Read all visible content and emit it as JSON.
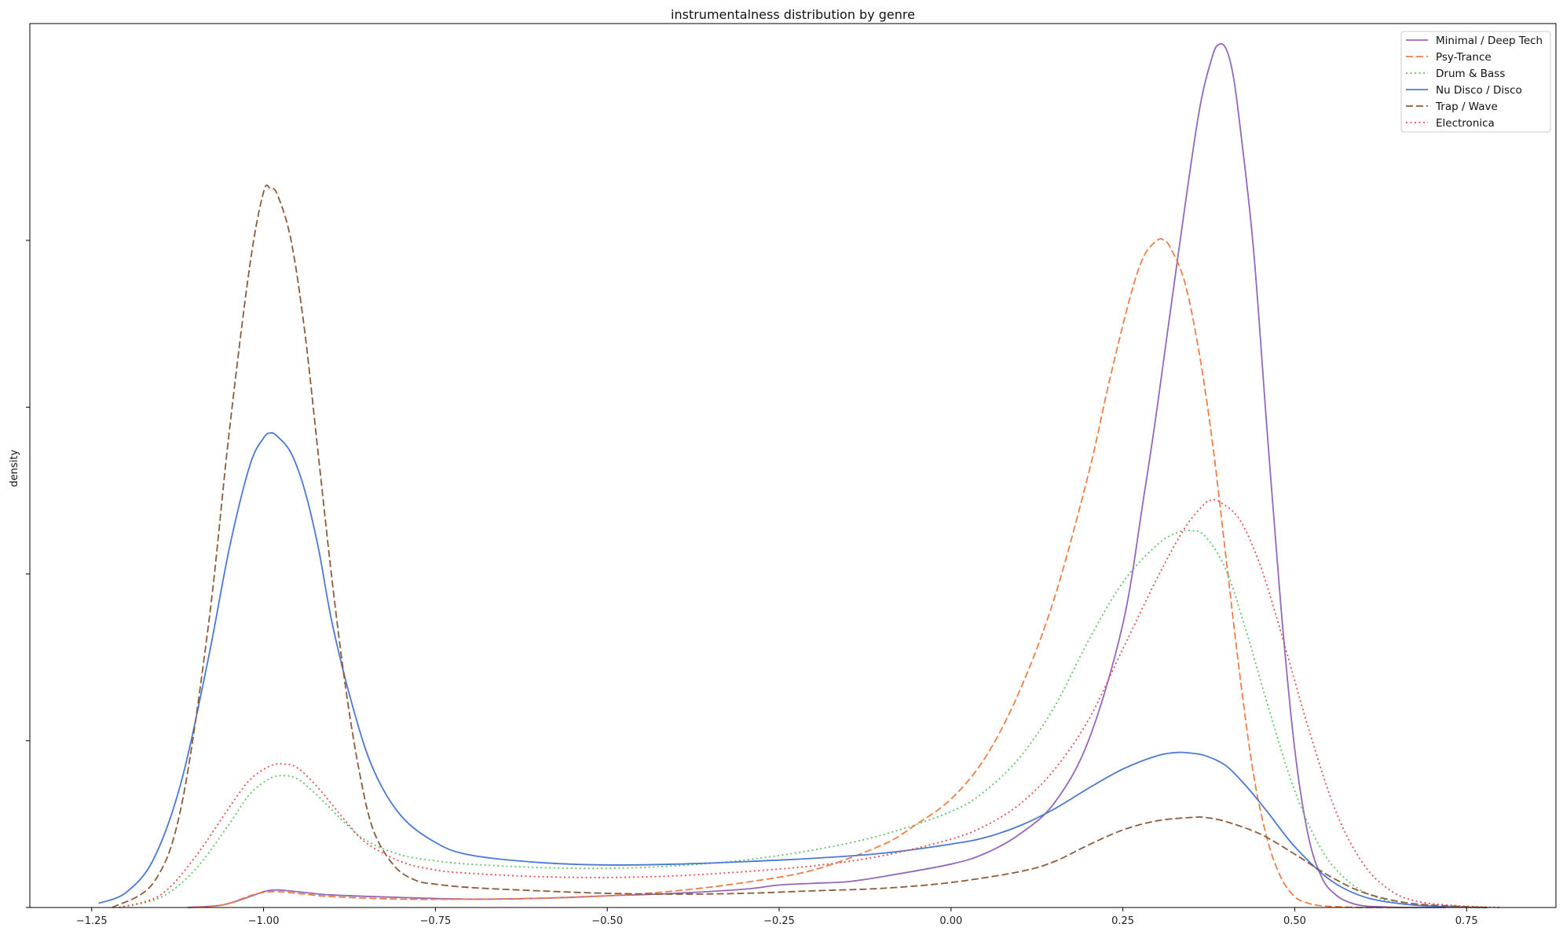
{
  "chart_data": {
    "type": "line",
    "title": "instrumentalness distribution by genre",
    "xlabel": "",
    "ylabel": "density",
    "xlim": [
      -1.34,
      0.88
    ],
    "ylim": [
      0,
      1.06
    ],
    "x_ticks": [
      -1.25,
      -1.0,
      -0.75,
      -0.5,
      -0.25,
      0.0,
      0.25,
      0.5,
      0.75
    ],
    "x_tick_labels": [
      "−1.25",
      "−1.00",
      "−0.75",
      "−0.50",
      "−0.25",
      "0.00",
      "0.25",
      "0.50",
      "0.75"
    ],
    "y_ticks": [
      0,
      0.2,
      0.4,
      0.6,
      0.8
    ],
    "grid": false,
    "legend_position": "top-right",
    "series": [
      {
        "name": "Minimal / Deep Tech",
        "color": "#9467bd",
        "dash": "solid",
        "x": [
          -1.11,
          -1.06,
          -1.02,
          -1.0,
          -0.98,
          -0.94,
          -0.9,
          -0.8,
          -0.7,
          -0.6,
          -0.5,
          -0.4,
          -0.3,
          -0.25,
          -0.2,
          -0.15,
          -0.1,
          0.0,
          0.05,
          0.1,
          0.15,
          0.2,
          0.25,
          0.28,
          0.3,
          0.33,
          0.36,
          0.38,
          0.39,
          0.4,
          0.41,
          0.42,
          0.44,
          0.46,
          0.48,
          0.5,
          0.52,
          0.54,
          0.56,
          0.58,
          0.6,
          0.62,
          0.66,
          0.72
        ],
        "y": [
          0.0,
          0.003,
          0.013,
          0.019,
          0.021,
          0.018,
          0.015,
          0.012,
          0.01,
          0.011,
          0.014,
          0.017,
          0.022,
          0.027,
          0.029,
          0.031,
          0.037,
          0.052,
          0.065,
          0.088,
          0.125,
          0.2,
          0.34,
          0.49,
          0.6,
          0.78,
          0.95,
          1.02,
          1.035,
          1.03,
          1.0,
          0.94,
          0.79,
          0.57,
          0.36,
          0.19,
          0.085,
          0.035,
          0.015,
          0.006,
          0.002,
          0.001,
          0.0,
          0.0
        ]
      },
      {
        "name": "Psy-Trance",
        "color": "#ed7e44",
        "dash": "dashed",
        "x": [
          -1.11,
          -1.06,
          -1.02,
          -1.0,
          -0.98,
          -0.94,
          -0.9,
          -0.8,
          -0.7,
          -0.6,
          -0.5,
          -0.4,
          -0.3,
          -0.2,
          -0.1,
          -0.05,
          0.0,
          0.05,
          0.1,
          0.15,
          0.2,
          0.23,
          0.26,
          0.28,
          0.3,
          0.31,
          0.32,
          0.34,
          0.36,
          0.38,
          0.4,
          0.42,
          0.44,
          0.46,
          0.48,
          0.5,
          0.52,
          0.54,
          0.56,
          0.6,
          0.66
        ],
        "y": [
          0.0,
          0.003,
          0.014,
          0.018,
          0.019,
          0.016,
          0.013,
          0.01,
          0.01,
          0.011,
          0.014,
          0.02,
          0.03,
          0.045,
          0.075,
          0.1,
          0.13,
          0.18,
          0.26,
          0.37,
          0.52,
          0.63,
          0.73,
          0.78,
          0.8,
          0.8,
          0.79,
          0.75,
          0.67,
          0.56,
          0.42,
          0.28,
          0.16,
          0.082,
          0.036,
          0.013,
          0.005,
          0.002,
          0.001,
          0.0,
          0.0
        ]
      },
      {
        "name": "Drum & Bass",
        "color": "#5fc55f",
        "dash": "dotted",
        "x": [
          -1.21,
          -1.15,
          -1.1,
          -1.05,
          -1.02,
          -0.99,
          -0.97,
          -0.95,
          -0.92,
          -0.88,
          -0.85,
          -0.8,
          -0.75,
          -0.7,
          -0.6,
          -0.5,
          -0.4,
          -0.3,
          -0.2,
          -0.1,
          0.0,
          0.05,
          0.1,
          0.15,
          0.2,
          0.25,
          0.3,
          0.33,
          0.35,
          0.37,
          0.4,
          0.43,
          0.46,
          0.5,
          0.54,
          0.58,
          0.62,
          0.66,
          0.72,
          0.78
        ],
        "y": [
          0.0,
          0.012,
          0.045,
          0.1,
          0.136,
          0.155,
          0.158,
          0.154,
          0.133,
          0.1,
          0.08,
          0.063,
          0.056,
          0.052,
          0.048,
          0.047,
          0.05,
          0.057,
          0.069,
          0.087,
          0.115,
          0.14,
          0.18,
          0.24,
          0.32,
          0.39,
          0.435,
          0.45,
          0.452,
          0.445,
          0.405,
          0.33,
          0.245,
          0.14,
          0.068,
          0.03,
          0.012,
          0.004,
          0.001,
          0.0
        ]
      },
      {
        "name": "Nu Disco / Disco",
        "color": "#4a79d4",
        "dash": "solid",
        "x": [
          -1.24,
          -1.2,
          -1.16,
          -1.12,
          -1.08,
          -1.05,
          -1.02,
          -1.0,
          -0.99,
          -0.98,
          -0.96,
          -0.94,
          -0.92,
          -0.9,
          -0.87,
          -0.84,
          -0.8,
          -0.75,
          -0.7,
          -0.6,
          -0.5,
          -0.4,
          -0.3,
          -0.2,
          -0.1,
          0.0,
          0.05,
          0.1,
          0.15,
          0.2,
          0.25,
          0.3,
          0.33,
          0.35,
          0.37,
          0.4,
          0.43,
          0.46,
          0.5,
          0.55,
          0.6,
          0.66,
          0.72,
          0.78
        ],
        "y": [
          0.005,
          0.018,
          0.058,
          0.15,
          0.3,
          0.43,
          0.53,
          0.563,
          0.569,
          0.565,
          0.545,
          0.5,
          0.43,
          0.34,
          0.24,
          0.165,
          0.11,
          0.078,
          0.063,
          0.054,
          0.051,
          0.052,
          0.055,
          0.059,
          0.065,
          0.076,
          0.084,
          0.098,
          0.118,
          0.143,
          0.166,
          0.182,
          0.186,
          0.185,
          0.182,
          0.17,
          0.145,
          0.115,
          0.073,
          0.034,
          0.013,
          0.004,
          0.001,
          0.0
        ]
      },
      {
        "name": "Trap / Wave",
        "color": "#8c5b3a",
        "dash": "dashed",
        "x": [
          -1.22,
          -1.16,
          -1.12,
          -1.08,
          -1.05,
          -1.02,
          -1.0,
          -0.99,
          -0.98,
          -0.96,
          -0.94,
          -0.92,
          -0.9,
          -0.88,
          -0.86,
          -0.84,
          -0.81,
          -0.78,
          -0.75,
          -0.7,
          -0.6,
          -0.5,
          -0.4,
          -0.3,
          -0.2,
          -0.1,
          0.0,
          0.1,
          0.15,
          0.2,
          0.25,
          0.3,
          0.35,
          0.37,
          0.4,
          0.45,
          0.5,
          0.55,
          0.6,
          0.66,
          0.72,
          0.78
        ],
        "y": [
          0.0,
          0.03,
          0.12,
          0.34,
          0.57,
          0.77,
          0.858,
          0.862,
          0.855,
          0.8,
          0.69,
          0.54,
          0.39,
          0.26,
          0.16,
          0.092,
          0.05,
          0.033,
          0.028,
          0.024,
          0.02,
          0.017,
          0.016,
          0.017,
          0.02,
          0.023,
          0.03,
          0.043,
          0.055,
          0.075,
          0.093,
          0.104,
          0.108,
          0.108,
          0.103,
          0.088,
          0.064,
          0.038,
          0.018,
          0.006,
          0.002,
          0.0
        ]
      },
      {
        "name": "Electronica",
        "color": "#e0504e",
        "dash": "dotted",
        "x": [
          -1.21,
          -1.15,
          -1.1,
          -1.05,
          -1.02,
          -0.99,
          -0.97,
          -0.95,
          -0.92,
          -0.88,
          -0.85,
          -0.8,
          -0.75,
          -0.7,
          -0.6,
          -0.5,
          -0.4,
          -0.3,
          -0.2,
          -0.1,
          0.0,
          0.05,
          0.1,
          0.15,
          0.2,
          0.25,
          0.3,
          0.34,
          0.37,
          0.38,
          0.39,
          0.42,
          0.45,
          0.48,
          0.52,
          0.56,
          0.6,
          0.64,
          0.68,
          0.74,
          0.8
        ],
        "y": [
          0.0,
          0.015,
          0.06,
          0.12,
          0.153,
          0.17,
          0.172,
          0.167,
          0.143,
          0.103,
          0.077,
          0.055,
          0.045,
          0.041,
          0.037,
          0.036,
          0.038,
          0.043,
          0.05,
          0.062,
          0.082,
          0.098,
          0.124,
          0.165,
          0.225,
          0.31,
          0.395,
          0.455,
          0.485,
          0.488,
          0.487,
          0.465,
          0.41,
          0.33,
          0.215,
          0.115,
          0.052,
          0.02,
          0.007,
          0.002,
          0.0
        ]
      }
    ]
  }
}
